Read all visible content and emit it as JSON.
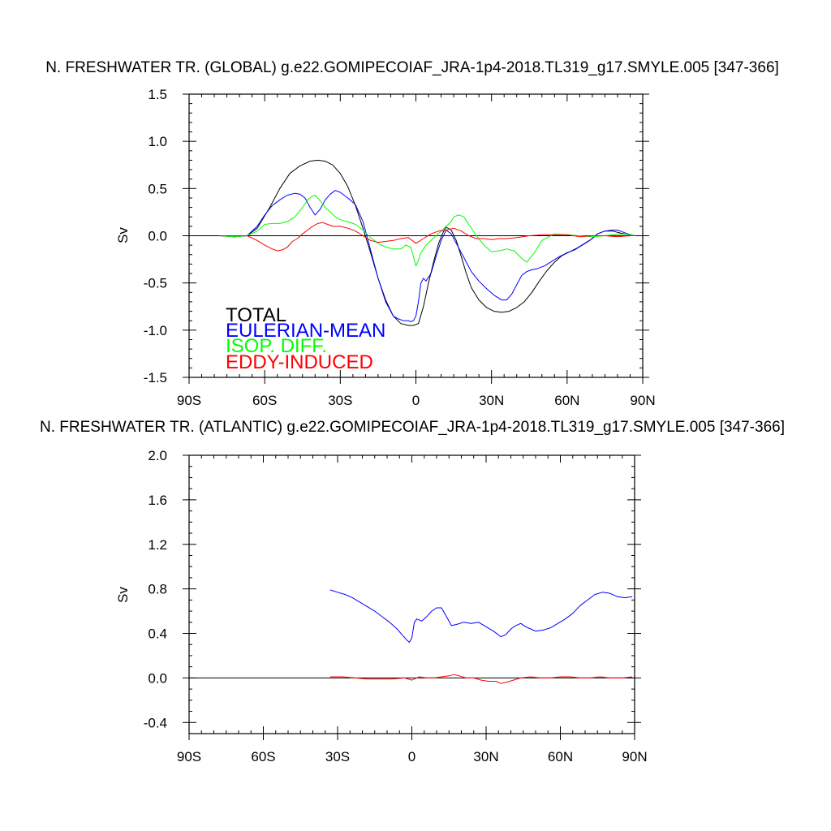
{
  "chart_data": [
    {
      "type": "line",
      "title": "N. FRESHWATER TR. (GLOBAL) g.e22.GOMIPECOIAF_JRA-1p4-2018.TL319_g17.SMYLE.005 [347-366]",
      "xlabel": "",
      "ylabel": "Sv",
      "xlim": [
        -90,
        90
      ],
      "ylim": [
        -1.5,
        1.5
      ],
      "xticks": [
        -90,
        -60,
        -30,
        0,
        30,
        60,
        90
      ],
      "xtick_labels": [
        "90S",
        "60S",
        "30S",
        "0",
        "30N",
        "60N",
        "90N"
      ],
      "yticks": [
        -1.5,
        -1.0,
        -0.5,
        0.0,
        0.5,
        1.0,
        1.5
      ],
      "ytick_labels": [
        "-1.5",
        "-1.0",
        "-0.5",
        "0.0",
        "0.5",
        "1.0",
        "1.5"
      ],
      "zero_line": true,
      "legend_position": "bottom-left",
      "series": [
        {
          "name": "TOTAL",
          "color": "#000000",
          "x": [
            -78,
            -72,
            -67,
            -63,
            -58,
            -54,
            -50,
            -46,
            -42,
            -39,
            -36,
            -33,
            -30,
            -27,
            -24,
            -21,
            -18,
            -15,
            -12,
            -9,
            -6,
            -3,
            -1,
            1,
            3,
            5,
            7,
            9,
            11,
            12,
            14,
            16,
            18,
            20,
            22,
            25,
            28,
            31,
            34,
            37,
            40,
            43,
            46,
            49,
            52,
            55,
            58,
            61,
            64,
            67,
            70,
            72,
            75,
            78,
            81,
            84,
            87
          ],
          "values": [
            0.0,
            -0.01,
            0.0,
            0.08,
            0.3,
            0.5,
            0.66,
            0.74,
            0.79,
            0.8,
            0.79,
            0.75,
            0.66,
            0.52,
            0.32,
            0.08,
            -0.18,
            -0.45,
            -0.68,
            -0.85,
            -0.93,
            -0.95,
            -0.95,
            -0.93,
            -0.75,
            -0.5,
            -0.28,
            -0.08,
            0.05,
            0.09,
            0.06,
            -0.05,
            -0.22,
            -0.4,
            -0.55,
            -0.68,
            -0.76,
            -0.8,
            -0.81,
            -0.8,
            -0.76,
            -0.7,
            -0.6,
            -0.48,
            -0.37,
            -0.28,
            -0.21,
            -0.17,
            -0.13,
            -0.08,
            -0.03,
            0.02,
            0.05,
            0.05,
            0.03,
            0.01,
            0.0
          ]
        },
        {
          "name": "EULERIAN-MEAN",
          "color": "#0000ff",
          "x": [
            -78,
            -72,
            -67,
            -63,
            -60,
            -57,
            -54,
            -51,
            -48,
            -46,
            -44,
            -42,
            -40,
            -38,
            -36,
            -34,
            -32,
            -30,
            -27,
            -24,
            -21,
            -18,
            -15,
            -12,
            -9,
            -7,
            -5,
            -3,
            -2,
            -1,
            0,
            1,
            2,
            3,
            4,
            6,
            8,
            10,
            12,
            14,
            16,
            18,
            20,
            22,
            25,
            28,
            31,
            34,
            36,
            38,
            40,
            42,
            44,
            46,
            48,
            51,
            54,
            57,
            60,
            63,
            66,
            69,
            72,
            75,
            78,
            80,
            82,
            84,
            87
          ],
          "values": [
            0.0,
            -0.01,
            0.0,
            0.1,
            0.22,
            0.32,
            0.38,
            0.43,
            0.45,
            0.44,
            0.4,
            0.3,
            0.22,
            0.28,
            0.38,
            0.44,
            0.48,
            0.46,
            0.4,
            0.33,
            0.15,
            -0.15,
            -0.45,
            -0.7,
            -0.85,
            -0.88,
            -0.9,
            -0.9,
            -0.91,
            -0.9,
            -0.85,
            -0.7,
            -0.5,
            -0.45,
            -0.48,
            -0.4,
            -0.22,
            -0.05,
            0.06,
            0.02,
            -0.08,
            -0.18,
            -0.28,
            -0.38,
            -0.48,
            -0.56,
            -0.63,
            -0.68,
            -0.68,
            -0.62,
            -0.52,
            -0.42,
            -0.38,
            -0.36,
            -0.35,
            -0.32,
            -0.27,
            -0.22,
            -0.18,
            -0.15,
            -0.1,
            -0.05,
            0.02,
            0.05,
            0.06,
            0.06,
            0.04,
            0.02,
            0.0
          ]
        },
        {
          "name": "ISOP. DIFF.",
          "color": "#00ff00",
          "x": [
            -78,
            -72,
            -67,
            -63,
            -60,
            -57,
            -54,
            -51,
            -48,
            -45,
            -43,
            -41,
            -40,
            -38,
            -36,
            -34,
            -32,
            -30,
            -27,
            -24,
            -21,
            -18,
            -15,
            -12,
            -9,
            -6,
            -4,
            -2,
            0,
            1,
            2,
            4,
            6,
            8,
            10,
            12,
            14,
            15,
            17,
            19,
            21,
            24,
            27,
            30,
            33,
            36,
            39,
            42,
            44,
            47,
            50,
            55,
            60,
            65,
            70,
            75,
            80,
            85,
            87
          ],
          "values": [
            0.0,
            -0.01,
            0.0,
            0.05,
            0.12,
            0.13,
            0.13,
            0.15,
            0.2,
            0.3,
            0.38,
            0.42,
            0.43,
            0.37,
            0.3,
            0.25,
            0.2,
            0.17,
            0.15,
            0.12,
            0.06,
            -0.02,
            -0.08,
            -0.12,
            -0.14,
            -0.14,
            -0.1,
            -0.12,
            -0.32,
            -0.26,
            -0.18,
            -0.1,
            -0.05,
            0.0,
            0.05,
            0.1,
            0.15,
            0.2,
            0.22,
            0.2,
            0.12,
            0.0,
            -0.1,
            -0.17,
            -0.16,
            -0.14,
            -0.16,
            -0.24,
            -0.28,
            -0.18,
            -0.05,
            0.02,
            0.01,
            0.0,
            -0.01,
            0.0,
            0.02,
            0.01,
            0.0
          ]
        },
        {
          "name": "EDDY-INDUCED",
          "color": "#ff0000",
          "x": [
            -78,
            -72,
            -67,
            -63,
            -60,
            -57,
            -55,
            -53,
            -51,
            -49,
            -47,
            -45,
            -43,
            -41,
            -39,
            -37,
            -35,
            -33,
            -30,
            -27,
            -24,
            -21,
            -18,
            -15,
            -12,
            -9,
            -6,
            -3,
            0,
            3,
            6,
            9,
            12,
            15,
            18,
            21,
            24,
            27,
            30,
            33,
            36,
            40,
            45,
            50,
            55,
            60,
            65,
            70,
            75,
            80,
            85,
            87
          ],
          "values": [
            0.0,
            0.0,
            0.0,
            -0.05,
            -0.1,
            -0.14,
            -0.16,
            -0.15,
            -0.12,
            -0.06,
            -0.03,
            0.02,
            0.06,
            0.1,
            0.13,
            0.14,
            0.12,
            0.1,
            0.1,
            0.08,
            0.05,
            0.0,
            -0.05,
            -0.07,
            -0.06,
            -0.05,
            -0.03,
            -0.02,
            -0.08,
            -0.03,
            0.02,
            0.05,
            0.06,
            0.08,
            0.05,
            0.0,
            -0.03,
            -0.03,
            -0.04,
            -0.03,
            -0.03,
            -0.02,
            0.0,
            0.01,
            0.01,
            0.01,
            -0.01,
            0.0,
            0.0,
            -0.01,
            0.0,
            0.0
          ]
        }
      ]
    },
    {
      "type": "line",
      "title": "N. FRESHWATER TR. (ATLANTIC) g.e22.GOMIPECOIAF_JRA-1p4-2018.TL319_g17.SMYLE.005 [347-366]",
      "xlabel": "",
      "ylabel": "Sv",
      "xlim": [
        -90,
        90
      ],
      "ylim": [
        -0.5,
        2.0
      ],
      "xticks": [
        -90,
        -60,
        -30,
        0,
        30,
        60,
        90
      ],
      "xtick_labels": [
        "90S",
        "60S",
        "30S",
        "0",
        "30N",
        "60N",
        "90N"
      ],
      "yticks": [
        -0.4,
        0.0,
        0.4,
        0.8,
        1.2,
        1.6,
        2.0
      ],
      "ytick_labels": [
        "-0.4",
        "0.0",
        "0.4",
        "0.8",
        "1.2",
        "1.6",
        "2.0"
      ],
      "zero_line": true,
      "series": [
        {
          "color": "#0000ff",
          "x": [
            -33,
            -30,
            -27,
            -24,
            -21,
            -18,
            -15,
            -12,
            -9,
            -6,
            -4,
            -2,
            -1,
            0,
            1,
            2,
            4,
            6,
            8,
            10,
            12,
            14,
            16,
            18,
            21,
            24,
            27,
            30,
            33,
            36,
            38,
            40,
            42,
            44,
            46,
            48,
            50,
            53,
            56,
            59,
            62,
            65,
            68,
            71,
            74,
            77,
            80,
            83,
            86,
            89
          ],
          "values": [
            0.79,
            0.77,
            0.75,
            0.72,
            0.68,
            0.64,
            0.6,
            0.55,
            0.5,
            0.44,
            0.39,
            0.34,
            0.32,
            0.36,
            0.5,
            0.53,
            0.51,
            0.55,
            0.6,
            0.63,
            0.63,
            0.55,
            0.47,
            0.48,
            0.5,
            0.49,
            0.5,
            0.46,
            0.42,
            0.37,
            0.39,
            0.44,
            0.47,
            0.49,
            0.46,
            0.44,
            0.42,
            0.43,
            0.45,
            0.49,
            0.53,
            0.58,
            0.65,
            0.7,
            0.75,
            0.77,
            0.76,
            0.73,
            0.72,
            0.73
          ]
        },
        {
          "color": "#ff0000",
          "x": [
            -33,
            -28,
            -23,
            -18,
            -13,
            -8,
            -3,
            0,
            3,
            6,
            9,
            12,
            15,
            17,
            19,
            22,
            25,
            28,
            31,
            34,
            36,
            38,
            41,
            44,
            48,
            52,
            56,
            60,
            64,
            68,
            72,
            76,
            80,
            85,
            89
          ],
          "values": [
            0.01,
            0.01,
            0.0,
            -0.01,
            -0.01,
            -0.01,
            0.0,
            -0.02,
            0.01,
            0.0,
            0.0,
            0.01,
            0.02,
            0.03,
            0.02,
            0.0,
            0.0,
            -0.02,
            -0.03,
            -0.03,
            -0.05,
            -0.04,
            -0.02,
            0.0,
            0.01,
            0.0,
            0.0,
            0.01,
            0.01,
            0.0,
            0.0,
            0.01,
            0.0,
            0.0,
            0.01
          ]
        }
      ]
    }
  ]
}
